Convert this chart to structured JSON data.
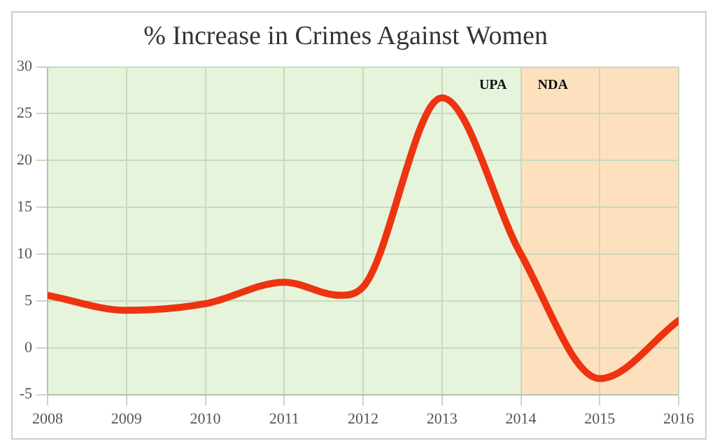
{
  "chart_data": {
    "type": "line",
    "title": "% Increase in Crimes Against Women",
    "x": [
      2008,
      2009,
      2010,
      2011,
      2011.7,
      2012,
      2013,
      2014,
      2015,
      2016
    ],
    "series": [
      {
        "color": "#ee3311",
        "values": [
          5.6,
          4,
          4.7,
          7,
          5.6,
          6.5,
          26.7,
          10,
          -3.3,
          2.9
        ]
      }
    ],
    "xlim": [
      2008,
      2016
    ],
    "xticks": [
      2008,
      2009,
      2010,
      2011,
      2012,
      2013,
      2014,
      2015,
      2016
    ],
    "ylim": [
      -5,
      30
    ],
    "yticks": [
      -5,
      0,
      5,
      10,
      15,
      20,
      25,
      30
    ],
    "bands": [
      {
        "axis": "x",
        "from": 2008,
        "to": 2014,
        "label": "UPA",
        "color": "#e6f4dc"
      },
      {
        "axis": "x",
        "from": 2014,
        "to": 2016,
        "label": "NDA",
        "color": "#fde1be"
      }
    ],
    "grid": true,
    "legend": false,
    "marker": "none",
    "line_style": "solid"
  }
}
